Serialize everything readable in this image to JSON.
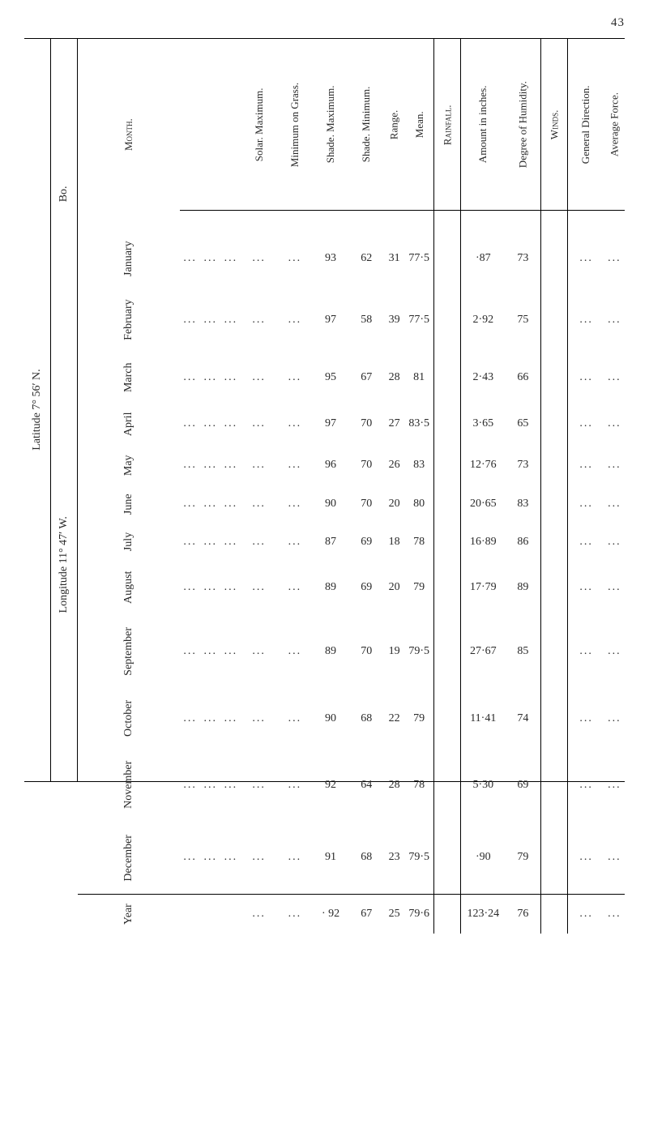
{
  "page_number": "43",
  "location_label": "Bo.",
  "latitude_label": "Latitude 7° 56′ N.",
  "longitude_label": "Longitude 11° 47′ W.",
  "group_rainfall": "Rainfall.",
  "group_winds": "Winds.",
  "month_header": "Month.",
  "year_label": "Year",
  "columns": {
    "solar_max": "Solar.\nMaximum.",
    "min_grass": "Minimum\non Grass.",
    "shade_max": "Shade.\nMaximum.",
    "shade_min": "Shade.\nMinimum.",
    "range": "Range.",
    "mean": "Mean.",
    "amount": "Amount\nin inches.",
    "deg_hum": "Degree of\nHumidity.",
    "gen_dir": "General\nDirection.",
    "avg_force": "Average\nForce."
  },
  "months": [
    "January",
    "February",
    "March",
    "April",
    "May",
    "June",
    "July",
    "August",
    "September",
    "October",
    "November",
    "December"
  ],
  "rows": {
    "solar_max": [
      "...",
      "...",
      "...",
      "...",
      "...",
      "...",
      "...",
      "...",
      "...",
      "...",
      "...",
      "..."
    ],
    "min_grass": [
      "...",
      "...",
      "...",
      "...",
      "...",
      "...",
      "...",
      "...",
      "...",
      "...",
      "...",
      "..."
    ],
    "shade_max": [
      "93",
      "97",
      "95",
      "97",
      "96",
      "90",
      "87",
      "89",
      "89",
      "90",
      "92",
      "91"
    ],
    "shade_min": [
      "62",
      "58",
      "67",
      "70",
      "70",
      "70",
      "69",
      "69",
      "70",
      "68",
      "64",
      "68"
    ],
    "range": [
      "31",
      "39",
      "28",
      "27",
      "26",
      "20",
      "18",
      "20",
      "19",
      "22",
      "28",
      "23"
    ],
    "mean": [
      "77·5",
      "77·5",
      "81",
      "83·5",
      "83",
      "80",
      "78",
      "79",
      "79·5",
      "79",
      "78",
      "79·5"
    ],
    "amount": [
      "·87",
      "2·92",
      "2·43",
      "3·65",
      "12·76",
      "20·65",
      "16·89",
      "17·79",
      "27·67",
      "11·41",
      "5·30",
      "·90"
    ],
    "deg_hum": [
      "73",
      "75",
      "66",
      "65",
      "73",
      "83",
      "86",
      "89",
      "85",
      "74",
      "69",
      "79"
    ],
    "gen_dir": [
      "...",
      "...",
      "...",
      "...",
      "...",
      "...",
      "...",
      "...",
      "...",
      "...",
      "...",
      "..."
    ],
    "avg_force": [
      "...",
      "...",
      "...",
      "...",
      "...",
      "...",
      "...",
      "...",
      "...",
      "...",
      "...",
      "..."
    ]
  },
  "year": {
    "solar_max": "...",
    "min_grass": "...",
    "shade_max": "· 92",
    "shade_min": "67",
    "range": "25",
    "mean": "79·6",
    "amount": "123·24",
    "deg_hum": "76",
    "gen_dir": "...",
    "avg_force": "..."
  }
}
